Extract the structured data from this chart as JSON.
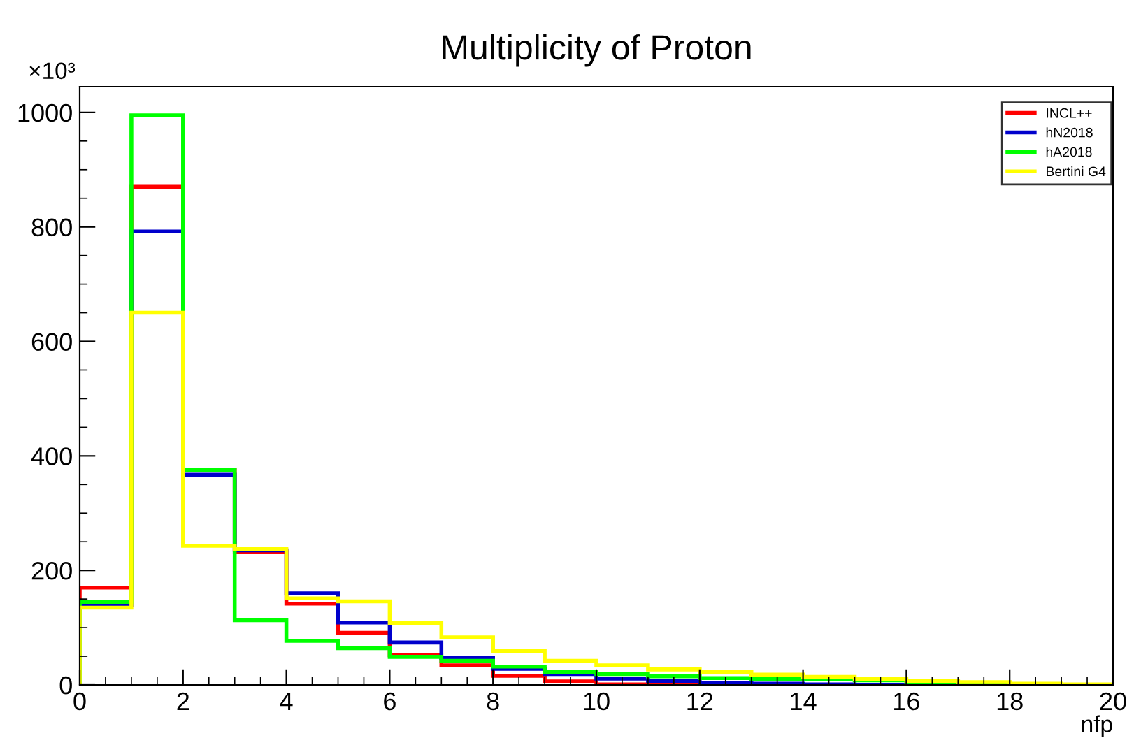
{
  "chart_data": {
    "type": "histogram",
    "title": "Multiplicity of Proton",
    "xlabel": "nfp",
    "ylabel": "×10³",
    "bins": [
      0,
      1,
      2,
      3,
      4,
      5,
      6,
      7,
      8,
      9,
      10,
      11,
      12,
      13,
      14,
      15,
      16,
      17,
      18,
      19,
      20
    ],
    "series": [
      {
        "name": "INCL++",
        "color": "#ff0000",
        "values": [
          170,
          870,
          375,
          233,
          142,
          91,
          52,
          34,
          16,
          6,
          1,
          0,
          0,
          0,
          0,
          0,
          0,
          0,
          0,
          0
        ]
      },
      {
        "name": "hN2018",
        "color": "#0000cc",
        "values": [
          140,
          792,
          367,
          235,
          160,
          109,
          74,
          47,
          28,
          19,
          11,
          7,
          4,
          2,
          1,
          0,
          0,
          0,
          0,
          0
        ]
      },
      {
        "name": "hA2018",
        "color": "#00ff00",
        "values": [
          145,
          995,
          375,
          113,
          77,
          64,
          49,
          42,
          32,
          23,
          19,
          15,
          12,
          10,
          10,
          8,
          4,
          2,
          0,
          0
        ]
      },
      {
        "name": "Bertini G4",
        "color": "#ffff00",
        "values": [
          135,
          650,
          243,
          237,
          151,
          146,
          108,
          83,
          59,
          42,
          34,
          27,
          23,
          18,
          14,
          10,
          7,
          5,
          2,
          1
        ]
      }
    ],
    "xlim": [
      0,
      20
    ],
    "ylim": [
      0,
      1045
    ],
    "xticks": [
      0,
      2,
      4,
      6,
      8,
      10,
      12,
      14,
      16,
      18,
      20
    ],
    "yticks": [
      0,
      200,
      400,
      600,
      800,
      1000
    ],
    "grid": false,
    "legend": "top right"
  }
}
